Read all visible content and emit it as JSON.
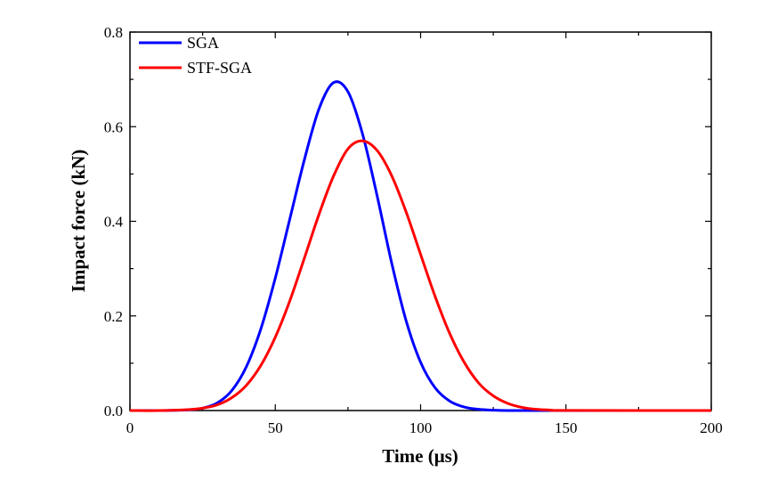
{
  "chart_data": {
    "type": "line",
    "title": "",
    "xlabel": "Time (μs)",
    "ylabel": "Impact force  (kN)",
    "xlim": [
      0,
      200
    ],
    "ylim": [
      0,
      0.8
    ],
    "x_ticks": [
      0,
      50,
      100,
      150,
      200
    ],
    "x_tick_labels": [
      "0",
      "50",
      "100",
      "150",
      "200"
    ],
    "y_ticks": [
      0.0,
      0.2,
      0.4,
      0.6,
      0.8
    ],
    "y_tick_labels": [
      "0.0",
      "0.2",
      "0.4",
      "0.6",
      "0.8"
    ],
    "grid": false,
    "legend_position": "top-left",
    "series": [
      {
        "name": "SGA",
        "color": "#0000ff",
        "x": [
          0,
          10,
          20,
          25,
          30,
          35,
          40,
          45,
          50,
          55,
          60,
          65,
          70,
          75,
          80,
          85,
          90,
          95,
          100,
          105,
          110,
          115,
          120,
          125,
          130,
          140,
          150,
          200
        ],
        "y": [
          0,
          0,
          0.0015,
          0.005,
          0.016,
          0.042,
          0.092,
          0.172,
          0.28,
          0.405,
          0.53,
          0.637,
          0.693,
          0.674,
          0.585,
          0.455,
          0.313,
          0.19,
          0.102,
          0.048,
          0.02,
          0.0075,
          0.0025,
          0.0008,
          0,
          0,
          0,
          0
        ]
      },
      {
        "name": "STF-SGA",
        "color": "#ff0000",
        "x": [
          0,
          10,
          20,
          25,
          30,
          35,
          40,
          45,
          50,
          55,
          60,
          65,
          70,
          75,
          80,
          85,
          90,
          95,
          100,
          105,
          110,
          115,
          120,
          125,
          130,
          135,
          140,
          145,
          150,
          200
        ],
        "y": [
          0,
          0,
          0.002,
          0.005,
          0.012,
          0.027,
          0.053,
          0.095,
          0.155,
          0.232,
          0.322,
          0.414,
          0.495,
          0.553,
          0.57,
          0.55,
          0.497,
          0.42,
          0.33,
          0.241,
          0.163,
          0.102,
          0.058,
          0.031,
          0.015,
          0.0065,
          0.0025,
          0.0008,
          0.0002,
          0
        ]
      }
    ]
  }
}
